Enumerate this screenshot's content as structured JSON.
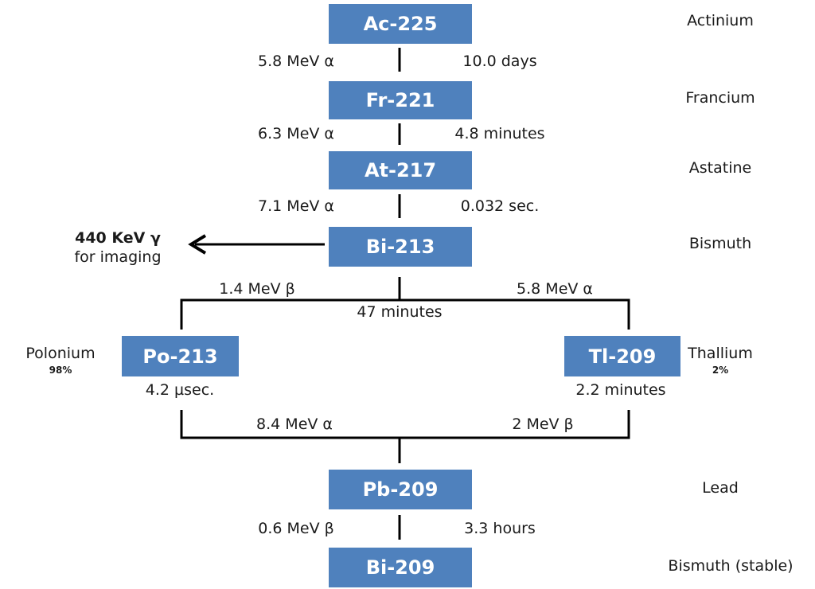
{
  "nuclides": {
    "ac225": {
      "label": "Ac-225",
      "element": "Actinium"
    },
    "fr221": {
      "label": "Fr-221",
      "element": "Francium"
    },
    "at217": {
      "label": "At-217",
      "element": "Astatine"
    },
    "bi213": {
      "label": "Bi-213",
      "element": "Bismuth"
    },
    "po213": {
      "label": "Po-213",
      "element": "Polonium",
      "branch": "98%"
    },
    "tl209": {
      "label": "Tl-209",
      "element": "Thallium",
      "branch": "2%"
    },
    "pb209": {
      "label": "Pb-209",
      "element": "Lead"
    },
    "bi209": {
      "label": "Bi-209",
      "element": "Bismuth (stable)"
    }
  },
  "decays": {
    "ac_fr": {
      "energy": "5.8 MeV α",
      "halflife": "10.0 days"
    },
    "fr_at": {
      "energy": "6.3 MeV α",
      "halflife": "4.8 minutes"
    },
    "at_bi": {
      "energy": "7.1 MeV α",
      "halflife": "0.032 sec."
    },
    "bi_po": {
      "energy": "1.4 MeV β"
    },
    "bi_tl": {
      "energy": "5.8 MeV α"
    },
    "bi_halflife": "47 minutes",
    "po_halflife": "4.2 µsec.",
    "tl_halflife": "2.2 minutes",
    "po_pb": {
      "energy": "8.4 MeV α"
    },
    "tl_pb": {
      "energy": "2 MeV β"
    },
    "pb_bi": {
      "energy": "0.6 MeV β",
      "halflife": "3.3 hours"
    }
  },
  "gamma": {
    "line1": "440 KeV γ",
    "line2": "for imaging"
  }
}
